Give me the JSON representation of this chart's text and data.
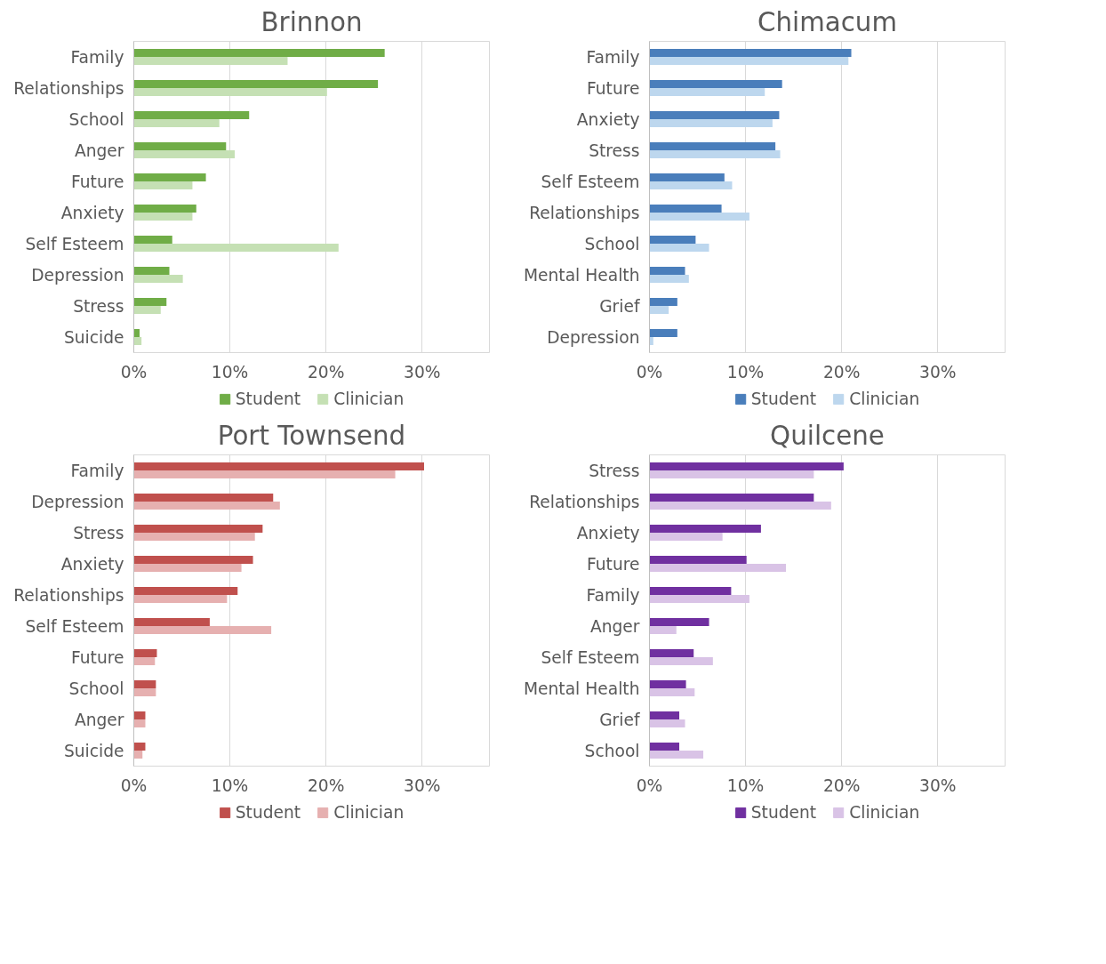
{
  "chart_data": [
    {
      "type": "bar",
      "orientation": "horizontal",
      "title": "Brinnon",
      "categories": [
        "Family",
        "Relationships",
        "School",
        "Anger",
        "Future",
        "Anxiety",
        "Self Esteem",
        "Depression",
        "Stress",
        "Suicide"
      ],
      "series": [
        {
          "name": "Student",
          "color": "#70ad47",
          "values": [
            26.1,
            25.4,
            12.0,
            9.6,
            7.5,
            6.5,
            4.0,
            3.7,
            3.4,
            0.6
          ]
        },
        {
          "name": "Clinician",
          "color": "#c5e0b4",
          "values": [
            16.0,
            20.1,
            8.9,
            10.5,
            6.1,
            6.1,
            21.3,
            5.1,
            2.8,
            0.8
          ]
        }
      ],
      "xlim": [
        0,
        37
      ],
      "xticks": [
        {
          "value": 0,
          "label": "0%"
        },
        {
          "value": 10,
          "label": "10%"
        },
        {
          "value": 20,
          "label": "20%"
        },
        {
          "value": 30,
          "label": "30%"
        }
      ],
      "grid": "x",
      "legend": "bottom"
    },
    {
      "type": "bar",
      "orientation": "horizontal",
      "title": "Chimacum",
      "categories": [
        "Family",
        "Future",
        "Anxiety",
        "Stress",
        "Self Esteem",
        "Relationships",
        "School",
        "Mental Health",
        "Grief",
        "Depression"
      ],
      "series": [
        {
          "name": "Student",
          "color": "#4a7ebb",
          "values": [
            21.0,
            13.8,
            13.5,
            13.1,
            7.8,
            7.5,
            4.8,
            3.7,
            2.9,
            2.9
          ]
        },
        {
          "name": "Clinician",
          "color": "#bdd7ee",
          "values": [
            20.7,
            12.0,
            12.8,
            13.6,
            8.6,
            10.4,
            6.2,
            4.1,
            2.0,
            0.4
          ]
        }
      ],
      "xlim": [
        0,
        37
      ],
      "xticks": [
        {
          "value": 0,
          "label": "0%"
        },
        {
          "value": 10,
          "label": "10%"
        },
        {
          "value": 20,
          "label": "20%"
        },
        {
          "value": 30,
          "label": "30%"
        }
      ],
      "grid": "x",
      "legend": "bottom"
    },
    {
      "type": "bar",
      "orientation": "horizontal",
      "title": "Port Townsend",
      "categories": [
        "Family",
        "Depression",
        "Stress",
        "Anxiety",
        "Relationships",
        "Self Esteem",
        "Future",
        "School",
        "Anger",
        "Suicide"
      ],
      "series": [
        {
          "name": "Student",
          "color": "#c0504d",
          "values": [
            30.2,
            14.5,
            13.4,
            12.4,
            10.8,
            7.9,
            2.4,
            2.3,
            1.2,
            1.2
          ]
        },
        {
          "name": "Clinician",
          "color": "#e6b0b0",
          "values": [
            27.2,
            15.2,
            12.6,
            11.2,
            9.7,
            14.3,
            2.2,
            2.3,
            1.2,
            0.9
          ]
        }
      ],
      "xlim": [
        0,
        37
      ],
      "xticks": [
        {
          "value": 0,
          "label": "0%"
        },
        {
          "value": 10,
          "label": "10%"
        },
        {
          "value": 20,
          "label": "20%"
        },
        {
          "value": 30,
          "label": "30%"
        }
      ],
      "grid": "x",
      "legend": "bottom"
    },
    {
      "type": "bar",
      "orientation": "horizontal",
      "title": "Quilcene",
      "categories": [
        "Stress",
        "Relationships",
        "Anxiety",
        "Future",
        "Family",
        "Anger",
        "Self Esteem",
        "Mental Health",
        "Grief",
        "School"
      ],
      "series": [
        {
          "name": "Student",
          "color": "#7030a0",
          "values": [
            20.2,
            17.1,
            11.6,
            10.1,
            8.5,
            6.2,
            4.6,
            3.8,
            3.1,
            3.1
          ]
        },
        {
          "name": "Clinician",
          "color": "#d9c3e6",
          "values": [
            17.1,
            18.9,
            7.6,
            14.2,
            10.4,
            2.8,
            6.6,
            4.7,
            3.7,
            5.6
          ]
        }
      ],
      "xlim": [
        0,
        37
      ],
      "xticks": [
        {
          "value": 0,
          "label": "0%"
        },
        {
          "value": 10,
          "label": "10%"
        },
        {
          "value": 20,
          "label": "20%"
        },
        {
          "value": 30,
          "label": "30%"
        }
      ],
      "grid": "x",
      "legend": "bottom"
    }
  ]
}
